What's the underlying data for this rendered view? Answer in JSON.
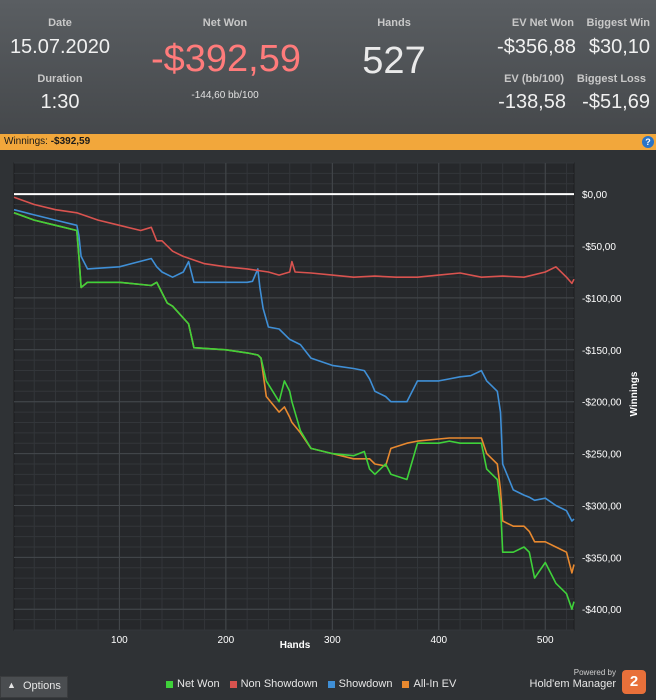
{
  "header": {
    "date_label": "Date",
    "date_value": "15.07.2020",
    "duration_label": "Duration",
    "duration_value": "1:30",
    "net_won_label": "Net Won",
    "net_won_value": "-$392,59",
    "net_won_sub": "-144,60 bb/100",
    "hands_label": "Hands",
    "hands_value": "527",
    "ev_net_won_label": "EV Net Won",
    "ev_net_won_value": "-$356,88",
    "biggest_win_label": "Biggest Win",
    "biggest_win_value": "$30,10",
    "ev_bb_label": "EV (bb/100)",
    "ev_bb_value": "-138,58",
    "biggest_loss_label": "Biggest Loss",
    "biggest_loss_value": "-$51,69"
  },
  "banner": {
    "label": "Winnings:",
    "value": "-$392,59",
    "help_icon": "question-circle-icon"
  },
  "footer": {
    "options_label": "Options",
    "options_icon": "chevron-up-icon",
    "powered_by": "Powered by",
    "brand_name": "Hold'em Manager",
    "brand_logo_text": "2"
  },
  "colors": {
    "net_won": "#3fd13a",
    "non_showdown": "#d9534f",
    "showdown": "#3f8fd6",
    "all_in_ev": "#e8892f",
    "zero_line": "#ffffff",
    "banner": "#f2a73b",
    "negative": "#ff7b7b"
  },
  "chart_data": {
    "type": "line",
    "xlabel": "Hands",
    "ylabel": "Winnings",
    "xlim": [
      1,
      527
    ],
    "ylim": [
      -420,
      30
    ],
    "x_ticks": [
      100,
      200,
      300,
      400,
      500
    ],
    "y_ticks": [
      0,
      -50,
      -100,
      -150,
      -200,
      -250,
      -300,
      -350,
      -400
    ],
    "y_tick_labels": [
      "$0,00",
      "-$50,00",
      "-$100,00",
      "-$150,00",
      "-$200,00",
      "-$250,00",
      "-$300,00",
      "-$350,00",
      "-$400,00"
    ],
    "grid": true,
    "legend": "bottom",
    "series": [
      {
        "name": "Net Won",
        "x": [
          1,
          20,
          40,
          60,
          62,
          64,
          70,
          100,
          130,
          135,
          140,
          145,
          150,
          165,
          170,
          200,
          220,
          230,
          233,
          238,
          250,
          255,
          260,
          262,
          270,
          280,
          300,
          320,
          330,
          335,
          340,
          350,
          355,
          370,
          380,
          400,
          410,
          420,
          430,
          440,
          445,
          450,
          455,
          458,
          460,
          470,
          480,
          485,
          490,
          500,
          510,
          520,
          525,
          527
        ],
        "y": [
          -18,
          -25,
          -30,
          -35,
          -60,
          -90,
          -85,
          -85,
          -88,
          -85,
          -95,
          -105,
          -108,
          -125,
          -148,
          -150,
          -153,
          -155,
          -158,
          -180,
          -200,
          -180,
          -190,
          -200,
          -228,
          -245,
          -250,
          -252,
          -248,
          -265,
          -270,
          -260,
          -270,
          -275,
          -240,
          -240,
          -238,
          -240,
          -240,
          -240,
          -265,
          -270,
          -275,
          -300,
          -345,
          -345,
          -340,
          -345,
          -370,
          -355,
          -375,
          -385,
          -400,
          -392.59
        ]
      },
      {
        "name": "Non Showdown",
        "x": [
          1,
          20,
          40,
          60,
          80,
          100,
          120,
          130,
          135,
          140,
          150,
          160,
          180,
          200,
          220,
          240,
          250,
          260,
          262,
          265,
          280,
          300,
          320,
          340,
          360,
          380,
          400,
          420,
          440,
          460,
          480,
          500,
          510,
          520,
          525,
          527
        ],
        "y": [
          -3,
          -10,
          -15,
          -18,
          -25,
          -30,
          -35,
          -32,
          -45,
          -45,
          -55,
          -60,
          -67,
          -70,
          -72,
          -75,
          -78,
          -75,
          -65,
          -75,
          -76,
          -78,
          -80,
          -79,
          -80,
          -80,
          -78,
          -76,
          -80,
          -79,
          -80,
          -75,
          -70,
          -80,
          -86,
          -82
        ]
      },
      {
        "name": "Showdown",
        "x": [
          1,
          20,
          40,
          60,
          62,
          64,
          70,
          100,
          130,
          135,
          140,
          150,
          160,
          165,
          170,
          200,
          220,
          225,
          230,
          232,
          235,
          240,
          250,
          260,
          270,
          280,
          300,
          320,
          330,
          335,
          340,
          350,
          355,
          370,
          380,
          400,
          410,
          420,
          430,
          440,
          445,
          450,
          455,
          458,
          460,
          470,
          480,
          485,
          490,
          500,
          510,
          520,
          525,
          527
        ],
        "y": [
          -15,
          -20,
          -25,
          -30,
          -40,
          -60,
          -72,
          -70,
          -62,
          -70,
          -75,
          -80,
          -75,
          -65,
          -85,
          -85,
          -85,
          -84,
          -72,
          -90,
          -110,
          -128,
          -130,
          -140,
          -145,
          -158,
          -165,
          -168,
          -170,
          -178,
          -190,
          -195,
          -200,
          -200,
          -180,
          -180,
          -178,
          -176,
          -175,
          -170,
          -180,
          -185,
          -190,
          -210,
          -260,
          -285,
          -290,
          -292,
          -295,
          -293,
          -300,
          -305,
          -315,
          -313
        ]
      },
      {
        "name": "All-In EV",
        "x": [
          1,
          20,
          40,
          60,
          62,
          64,
          70,
          100,
          130,
          135,
          140,
          145,
          150,
          165,
          170,
          200,
          220,
          230,
          233,
          238,
          250,
          255,
          260,
          262,
          270,
          280,
          300,
          320,
          330,
          335,
          340,
          350,
          355,
          370,
          380,
          400,
          410,
          420,
          430,
          440,
          445,
          450,
          455,
          458,
          460,
          470,
          480,
          485,
          490,
          500,
          510,
          520,
          525,
          527
        ],
        "y": [
          -18,
          -25,
          -30,
          -35,
          -60,
          -90,
          -85,
          -85,
          -88,
          -85,
          -95,
          -105,
          -108,
          -125,
          -148,
          -150,
          -153,
          -155,
          -158,
          -195,
          -210,
          -205,
          -215,
          -220,
          -230,
          -245,
          -250,
          -255,
          -255,
          -255,
          -260,
          -262,
          -245,
          -240,
          -238,
          -236,
          -235,
          -235,
          -235,
          -235,
          -250,
          -255,
          -260,
          -285,
          -315,
          -320,
          -320,
          -325,
          -335,
          -335,
          -340,
          -345,
          -365,
          -356.88
        ]
      }
    ]
  }
}
